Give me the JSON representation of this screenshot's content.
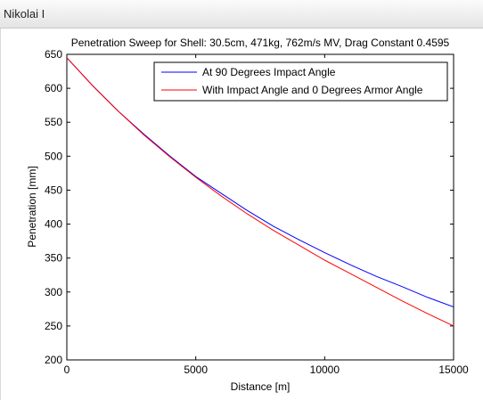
{
  "window": {
    "title": "Nikolai I"
  },
  "chart_data": {
    "type": "line",
    "title": "Penetration Sweep for Shell: 30.5cm, 471kg, 762m/s MV, Drag Constant 0.4595",
    "xlabel": "Distance [m]",
    "ylabel": "Penetration [mm]",
    "xlim": [
      0,
      15000
    ],
    "ylim": [
      200,
      650
    ],
    "xticks": [
      0,
      5000,
      10000,
      15000
    ],
    "yticks": [
      200,
      250,
      300,
      350,
      400,
      450,
      500,
      550,
      600,
      650
    ],
    "grid": false,
    "legend_position": "top-right",
    "x": [
      0,
      1000,
      2000,
      3000,
      4000,
      5000,
      6000,
      7000,
      8000,
      9000,
      10000,
      11000,
      12000,
      13000,
      14000,
      15000
    ],
    "series": [
      {
        "name": "At 90 Degrees Impact Angle",
        "color": "#0000ff",
        "values": [
          645,
          604,
          566,
          532,
          500,
          470,
          445,
          420,
          397,
          377,
          358,
          340,
          323,
          308,
          292,
          278
        ]
      },
      {
        "name": "With Impact Angle and 0 Degrees Armor Angle",
        "color": "#ff0000",
        "values": [
          645,
          604,
          566,
          531,
          499,
          469,
          441,
          415,
          391,
          369,
          347,
          327,
          307,
          287,
          268,
          250
        ]
      }
    ]
  }
}
